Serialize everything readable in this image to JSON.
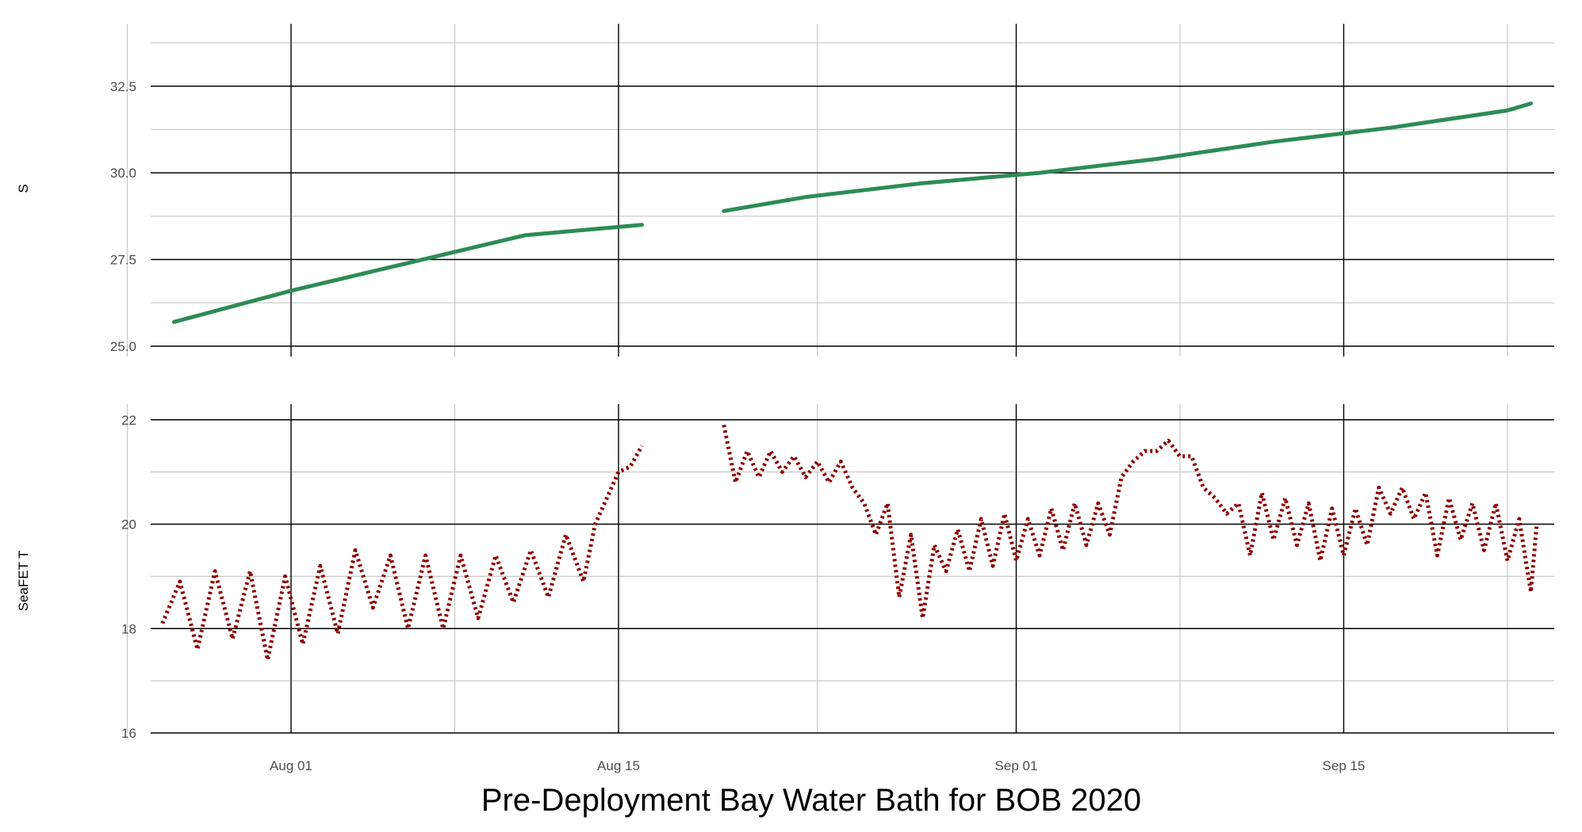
{
  "chart_data": [
    {
      "type": "line",
      "panel": "top",
      "ylabel": "S",
      "ylim": [
        24.7,
        34.3
      ],
      "yticks": [
        25.0,
        27.5,
        30.0,
        32.5
      ],
      "ytick_labels": [
        "25.0",
        "27.5",
        "30.0",
        "32.5"
      ],
      "xlim": [
        "2020-07-26",
        "2020-09-24"
      ],
      "grid": true,
      "series": [
        {
          "color": "#2e8b57",
          "segments": [
            {
              "x": [
                "2020-07-27",
                "2020-08-01",
                "2020-08-06",
                "2020-08-11",
                "2020-08-16"
              ],
              "y": [
                25.7,
                26.6,
                27.4,
                28.2,
                28.5
              ]
            },
            {
              "x": [
                "2020-08-19 12:00",
                "2020-08-23",
                "2020-08-28",
                "2020-09-02",
                "2020-09-07",
                "2020-09-12",
                "2020-09-17",
                "2020-09-22",
                "2020-09-23"
              ],
              "y": [
                28.9,
                29.3,
                29.7,
                30.0,
                30.4,
                30.9,
                31.3,
                31.8,
                32.0
              ]
            }
          ]
        }
      ]
    },
    {
      "type": "line",
      "panel": "bottom",
      "ylabel": "SeaFET T",
      "ylim": [
        16,
        22.3
      ],
      "yticks": [
        16,
        18,
        20,
        22
      ],
      "ytick_labels": [
        "16",
        "18",
        "20",
        "22"
      ],
      "xlim": [
        "2020-07-26",
        "2020-09-24"
      ],
      "xticks": [
        "2020-08-01",
        "2020-08-15",
        "2020-09-01",
        "2020-09-15"
      ],
      "xtick_labels": [
        "Aug 01",
        "Aug 15",
        "Sep 01",
        "Sep 15"
      ],
      "grid": true,
      "series": [
        {
          "color": "#8b0000",
          "style": "dotted",
          "segments": [
            {
              "x": [
                "2020-07-26 12:00",
                "2020-07-27 06:00",
                "2020-07-28",
                "2020-07-28 18:00",
                "2020-07-29 12:00",
                "2020-07-30 06:00",
                "2020-07-31",
                "2020-07-31 18:00",
                "2020-08-01 12:00",
                "2020-08-02 06:00",
                "2020-08-03",
                "2020-08-03 18:00",
                "2020-08-04 12:00",
                "2020-08-05 06:00",
                "2020-08-06",
                "2020-08-06 18:00",
                "2020-08-07 12:00",
                "2020-08-08 06:00",
                "2020-08-09",
                "2020-08-09 18:00",
                "2020-08-10 12:00",
                "2020-08-11 06:00",
                "2020-08-12",
                "2020-08-12 18:00",
                "2020-08-13 12:00",
                "2020-08-14",
                "2020-08-14 12:00",
                "2020-08-15",
                "2020-08-15 12:00",
                "2020-08-16"
              ],
              "y": [
                18.1,
                18.9,
                17.6,
                19.1,
                17.8,
                19.1,
                17.4,
                19.0,
                17.7,
                19.2,
                17.9,
                19.5,
                18.4,
                19.4,
                18.0,
                19.4,
                18.0,
                19.4,
                18.2,
                19.4,
                18.5,
                19.5,
                18.6,
                19.8,
                18.9,
                20.0,
                20.5,
                21.0,
                21.1,
                21.5
              ]
            },
            {
              "x": [
                "2020-08-19 12:00",
                "2020-08-20",
                "2020-08-20 12:00",
                "2020-08-21",
                "2020-08-21 12:00",
                "2020-08-22",
                "2020-08-22 12:00",
                "2020-08-23",
                "2020-08-23 12:00",
                "2020-08-24",
                "2020-08-24 12:00",
                "2020-08-25",
                "2020-08-25 12:00",
                "2020-08-26",
                "2020-08-26 12:00",
                "2020-08-27",
                "2020-08-27 12:00",
                "2020-08-28",
                "2020-08-28 12:00",
                "2020-08-29",
                "2020-08-29 12:00",
                "2020-08-30",
                "2020-08-30 12:00",
                "2020-08-31",
                "2020-08-31 12:00",
                "2020-09-01",
                "2020-09-01 12:00",
                "2020-09-02",
                "2020-09-02 12:00",
                "2020-09-03",
                "2020-09-03 12:00",
                "2020-09-04",
                "2020-09-04 12:00",
                "2020-09-05",
                "2020-09-05 12:00",
                "2020-09-06",
                "2020-09-06 12:00",
                "2020-09-07",
                "2020-09-07 12:00",
                "2020-09-08",
                "2020-09-08 12:00",
                "2020-09-09",
                "2020-09-09 12:00",
                "2020-09-10",
                "2020-09-10 12:00",
                "2020-09-11",
                "2020-09-11 12:00",
                "2020-09-12",
                "2020-09-12 12:00",
                "2020-09-13",
                "2020-09-13 12:00",
                "2020-09-14",
                "2020-09-14 12:00",
                "2020-09-15",
                "2020-09-15 12:00",
                "2020-09-16",
                "2020-09-16 12:00",
                "2020-09-17",
                "2020-09-17 12:00",
                "2020-09-18",
                "2020-09-18 12:00",
                "2020-09-19",
                "2020-09-19 12:00",
                "2020-09-20",
                "2020-09-20 12:00",
                "2020-09-21",
                "2020-09-21 12:00",
                "2020-09-22",
                "2020-09-22 12:00",
                "2020-09-23",
                "2020-09-23 06:00"
              ],
              "y": [
                21.9,
                20.8,
                21.4,
                20.9,
                21.4,
                21.0,
                21.3,
                20.9,
                21.2,
                20.8,
                21.2,
                20.7,
                20.4,
                19.8,
                20.4,
                18.6,
                19.8,
                18.2,
                19.6,
                19.1,
                19.9,
                19.1,
                20.1,
                19.2,
                20.2,
                19.3,
                20.1,
                19.4,
                20.3,
                19.5,
                20.4,
                19.6,
                20.4,
                19.8,
                20.9,
                21.2,
                21.4,
                21.4,
                21.6,
                21.3,
                21.3,
                20.7,
                20.5,
                20.2,
                20.4,
                19.4,
                20.6,
                19.7,
                20.5,
                19.6,
                20.4,
                19.3,
                20.3,
                19.4,
                20.3,
                19.6,
                20.7,
                20.2,
                20.7,
                20.1,
                20.6,
                19.4,
                20.5,
                19.7,
                20.4,
                19.5,
                20.4,
                19.3,
                20.1,
                18.7,
                20.0
              ]
            }
          ]
        }
      ]
    }
  ],
  "title": "Pre-Deployment Bay Water Bath for BOB 2020"
}
